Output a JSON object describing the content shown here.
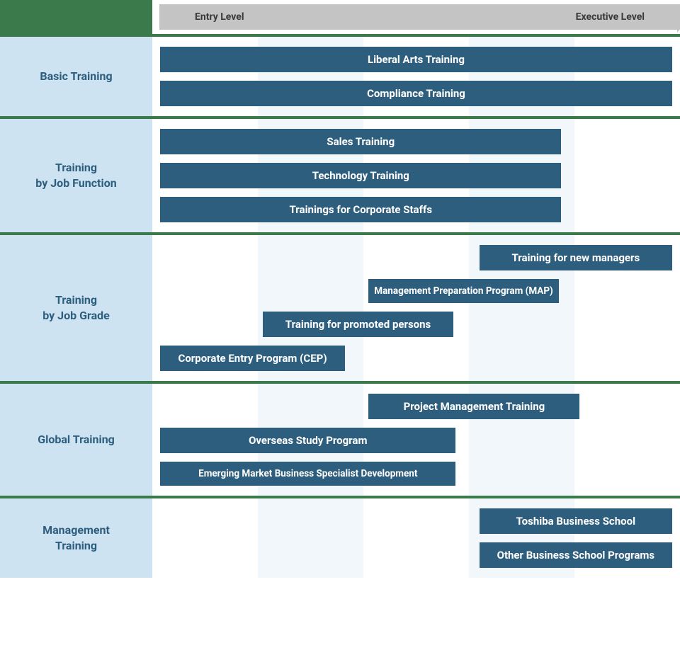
{
  "colors": {
    "section_divider": "#3b7a4a",
    "section_label_bg": "#cde3f2",
    "section_label_text": "#2e5e7e",
    "bar_bg": "#2e5e7e",
    "bar_text": "#ffffff",
    "scale_bg": "#c4c4c4",
    "scale_text": "#3a3a3a",
    "stripe_a": "#ffffff",
    "stripe_b": "#f2f7fb"
  },
  "scale": {
    "left_label": "Entry Level",
    "right_label": "Executive Level",
    "columns": 5
  },
  "sections": [
    {
      "label": "Basic Training",
      "bars": [
        {
          "label": "Liberal Arts Training",
          "start_pct": 1.5,
          "width_pct": 97,
          "size": "normal"
        },
        {
          "label": "Compliance Training",
          "start_pct": 1.5,
          "width_pct": 97,
          "size": "normal"
        }
      ]
    },
    {
      "label": "Training\nby Job Function",
      "bars": [
        {
          "label": "Sales Training",
          "start_pct": 1.5,
          "width_pct": 76,
          "size": "normal"
        },
        {
          "label": "Technology Training",
          "start_pct": 1.5,
          "width_pct": 76,
          "size": "normal"
        },
        {
          "label": "Trainings for Corporate Staffs",
          "start_pct": 1.5,
          "width_pct": 76,
          "size": "normal"
        }
      ]
    },
    {
      "label": "Training\nby Job Grade",
      "bars": [
        {
          "label": "Training for new managers",
          "start_pct": 62,
          "width_pct": 36.5,
          "size": "normal"
        },
        {
          "label": "Management Preparation Program (MAP)",
          "start_pct": 41,
          "width_pct": 36,
          "size": "sm"
        },
        {
          "label": "Training for promoted persons",
          "start_pct": 21,
          "width_pct": 36,
          "size": "normal"
        },
        {
          "label": "Corporate Entry Program (CEP)",
          "start_pct": 1.5,
          "width_pct": 35,
          "size": "normal"
        }
      ]
    },
    {
      "label": "Global Training",
      "bars": [
        {
          "label": "Project Management Training",
          "start_pct": 41,
          "width_pct": 40,
          "size": "normal"
        },
        {
          "label": "Overseas Study Program",
          "start_pct": 1.5,
          "width_pct": 56,
          "size": "normal"
        },
        {
          "label": "Emerging Market Business Specialist Development",
          "start_pct": 1.5,
          "width_pct": 56,
          "size": "sm"
        }
      ]
    },
    {
      "label": "Management\nTraining",
      "bars": [
        {
          "label": "Toshiba Business School",
          "start_pct": 62,
          "width_pct": 36.5,
          "size": "normal"
        },
        {
          "label": "Other Business School Programs",
          "start_pct": 62,
          "width_pct": 36.5,
          "size": "normal"
        }
      ]
    }
  ]
}
